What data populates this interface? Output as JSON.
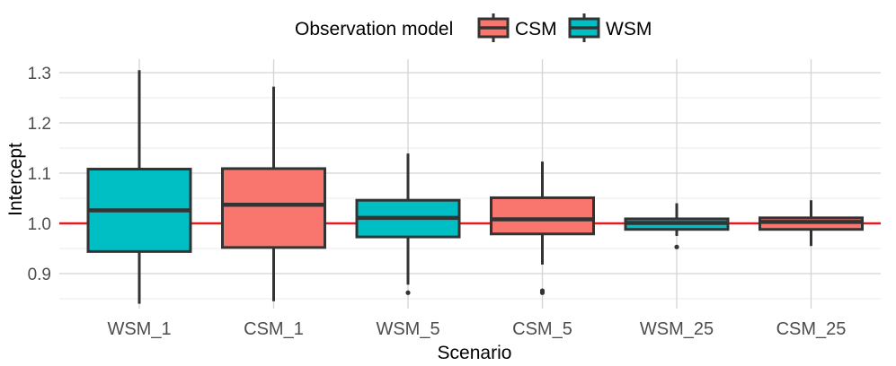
{
  "chart_data": {
    "type": "boxplot",
    "title": "",
    "xlabel": "Scenario",
    "ylabel": "Intercept",
    "ylim": [
      0.84,
      1.31
    ],
    "yticks": [
      0.9,
      1.0,
      1.1,
      1.2,
      1.3
    ],
    "ytick_labels": [
      "0.9",
      "1.0",
      "1.1",
      "1.2",
      "1.3"
    ],
    "grid": true,
    "reference_line": {
      "y": 1.0,
      "color": "#e41a1c"
    },
    "legend": {
      "title": "Observation model",
      "position": "top",
      "entries": [
        {
          "label": "CSM",
          "color": "#F8766D"
        },
        {
          "label": "WSM",
          "color": "#00BFC4"
        }
      ]
    },
    "categories": [
      "WSM_1",
      "CSM_1",
      "WSM_5",
      "CSM_5",
      "WSM_25",
      "CSM_25"
    ],
    "boxes": [
      {
        "category": "WSM_1",
        "model": "WSM",
        "whisker_low": 0.84,
        "q1": 0.944,
        "median": 1.026,
        "q3": 1.108,
        "whisker_high": 1.305,
        "outliers": []
      },
      {
        "category": "CSM_1",
        "model": "CSM",
        "whisker_low": 0.845,
        "q1": 0.952,
        "median": 1.037,
        "q3": 1.109,
        "whisker_high": 1.272,
        "outliers": []
      },
      {
        "category": "WSM_5",
        "model": "WSM",
        "whisker_low": 0.878,
        "q1": 0.973,
        "median": 1.011,
        "q3": 1.046,
        "whisker_high": 1.139,
        "outliers": [
          0.862
        ]
      },
      {
        "category": "CSM_5",
        "model": "CSM",
        "whisker_low": 0.918,
        "q1": 0.979,
        "median": 1.008,
        "q3": 1.051,
        "whisker_high": 1.123,
        "outliers": [
          0.866,
          0.862
        ]
      },
      {
        "category": "WSM_25",
        "model": "WSM",
        "whisker_low": 0.975,
        "q1": 0.988,
        "median": 1.001,
        "q3": 1.009,
        "whisker_high": 1.04,
        "outliers": [
          0.953
        ]
      },
      {
        "category": "CSM_25",
        "model": "CSM",
        "whisker_low": 0.955,
        "q1": 0.988,
        "median": 1.003,
        "q3": 1.011,
        "whisker_high": 1.046,
        "outliers": []
      }
    ]
  }
}
